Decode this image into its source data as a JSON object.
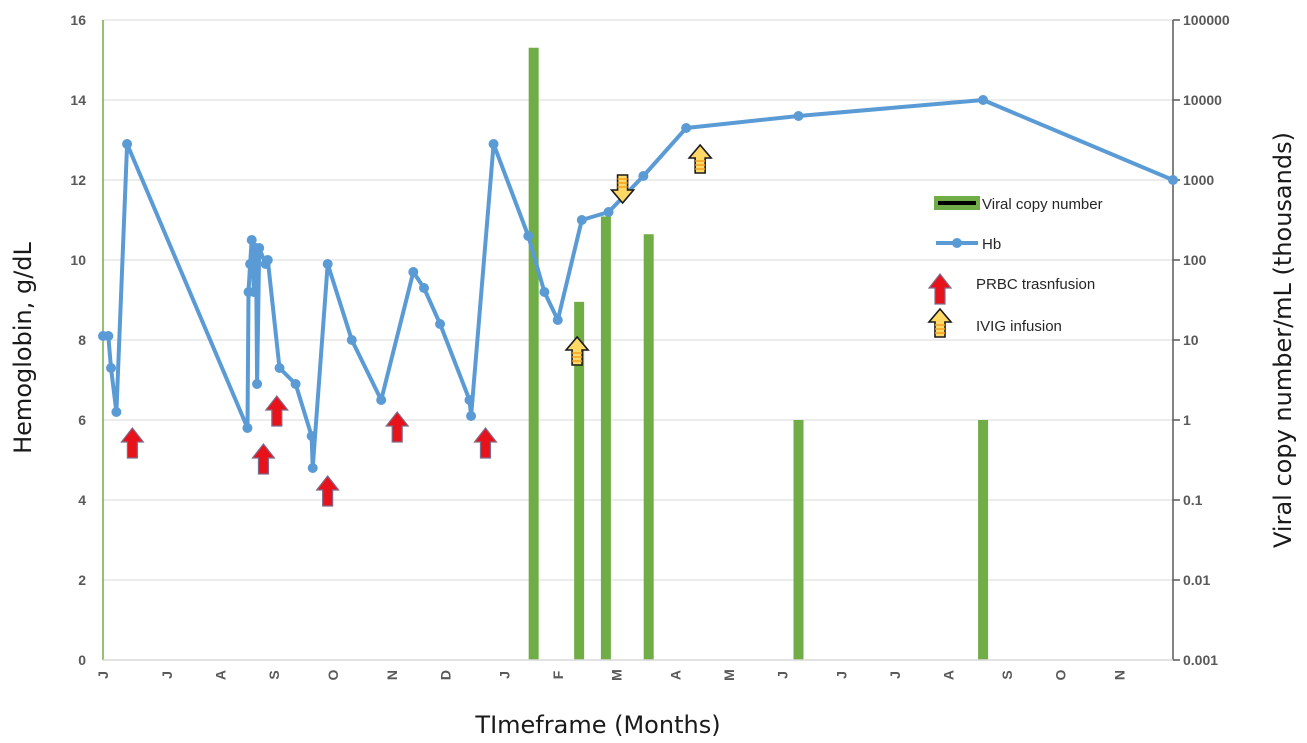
{
  "chart_data": {
    "type": "line",
    "xlabel": "TImeframe (Months)",
    "ylabel": "Hemoglobin, g/dL",
    "y2label": "Viral copy number/mL (thousands)",
    "ylim": [
      0,
      16
    ],
    "yticks": [
      "0",
      "2",
      "4",
      "6",
      "8",
      "10",
      "12",
      "14",
      "16"
    ],
    "y2scale": "log",
    "y2lim": [
      0.001,
      100000
    ],
    "y2ticks": [
      "0.001",
      "0.01",
      "0.1",
      "1",
      "10",
      "100",
      "1000",
      "10000",
      "100000"
    ],
    "xrange": [
      0,
      20
    ],
    "month_ticks": [
      {
        "pos": 0.0,
        "label": "J"
      },
      {
        "pos": 1.2,
        "label": "J"
      },
      {
        "pos": 2.2,
        "label": "A"
      },
      {
        "pos": 3.2,
        "label": "S"
      },
      {
        "pos": 4.3,
        "label": "O"
      },
      {
        "pos": 5.4,
        "label": "N"
      },
      {
        "pos": 6.4,
        "label": "D"
      },
      {
        "pos": 7.5,
        "label": "J"
      },
      {
        "pos": 8.5,
        "label": "F"
      },
      {
        "pos": 9.6,
        "label": "M"
      },
      {
        "pos": 10.7,
        "label": "A"
      },
      {
        "pos": 11.7,
        "label": "M"
      },
      {
        "pos": 12.7,
        "label": "J"
      },
      {
        "pos": 13.8,
        "label": "J"
      },
      {
        "pos": 14.8,
        "label": "J"
      },
      {
        "pos": 15.8,
        "label": "A"
      },
      {
        "pos": 16.9,
        "label": "S"
      },
      {
        "pos": 17.9,
        "label": "O"
      },
      {
        "pos": 19.0,
        "label": "N"
      }
    ],
    "hb_series": {
      "name": "Hb",
      "color": "#5b9bd5",
      "points": [
        [
          0.0,
          8.1
        ],
        [
          0.1,
          8.1
        ],
        [
          0.15,
          7.3
        ],
        [
          0.25,
          6.2
        ],
        [
          0.45,
          12.9
        ],
        [
          2.7,
          5.8
        ],
        [
          2.72,
          9.2
        ],
        [
          2.75,
          9.9
        ],
        [
          2.78,
          10.5
        ],
        [
          2.82,
          9.2
        ],
        [
          2.86,
          10.3
        ],
        [
          2.88,
          6.9
        ],
        [
          2.92,
          10.3
        ],
        [
          3.04,
          9.9
        ],
        [
          3.08,
          10.0
        ],
        [
          3.3,
          7.3
        ],
        [
          3.6,
          6.9
        ],
        [
          3.9,
          5.6
        ],
        [
          3.92,
          4.8
        ],
        [
          4.2,
          9.9
        ],
        [
          4.65,
          8.0
        ],
        [
          5.2,
          6.5
        ],
        [
          5.8,
          9.7
        ],
        [
          6.0,
          9.3
        ],
        [
          6.3,
          8.4
        ],
        [
          6.85,
          6.5
        ],
        [
          6.88,
          6.1
        ],
        [
          7.3,
          12.9
        ],
        [
          7.95,
          10.6
        ],
        [
          8.25,
          9.2
        ],
        [
          8.5,
          8.5
        ],
        [
          8.95,
          11.0
        ],
        [
          9.45,
          11.2
        ],
        [
          10.1,
          12.1
        ],
        [
          10.9,
          13.3
        ],
        [
          13.0,
          13.6
        ],
        [
          16.45,
          14.0
        ],
        [
          20.0,
          12.0
        ]
      ]
    },
    "viral_series": {
      "name": "Viral copy number",
      "color": "#70ad47",
      "points": [
        [
          8.05,
          45000
        ],
        [
          8.9,
          30
        ],
        [
          9.4,
          350
        ],
        [
          10.2,
          210
        ],
        [
          13.0,
          1
        ],
        [
          16.45,
          1
        ]
      ]
    },
    "annotations": {
      "prbc": {
        "name": "PRBC trasnfusion",
        "color": "#e8131a",
        "points": [
          [
            0.25,
            5.4
          ],
          [
            2.7,
            5.0
          ],
          [
            2.95,
            6.2
          ],
          [
            3.9,
            4.2
          ],
          [
            5.2,
            5.8
          ],
          [
            6.85,
            5.4
          ]
        ]
      },
      "ivig": {
        "name": "IVIG infusion",
        "color": "#ffd966",
        "points": [
          {
            "x": 8.6,
            "y": 7.7,
            "dir": "up"
          },
          {
            "x": 9.45,
            "y": 11.8,
            "dir": "down"
          },
          {
            "x": 10.9,
            "y": 12.5,
            "dir": "up"
          }
        ]
      }
    },
    "legend": {
      "placement": "right",
      "items": [
        "Viral copy number",
        "Hb",
        "PRBC trasnfusion",
        "IVIG infusion"
      ]
    },
    "grid": true
  }
}
